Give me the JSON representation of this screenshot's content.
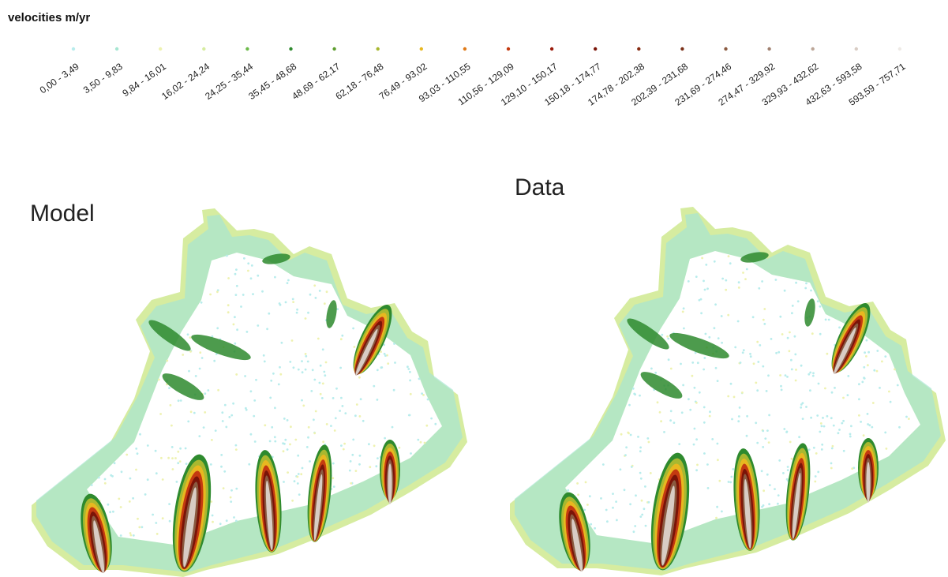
{
  "legend": {
    "title": "velocities m/yr",
    "items": [
      {
        "label": "0,00 - 3,49",
        "color": "#b8ecec"
      },
      {
        "label": "3,50 - 9,83",
        "color": "#a6e6d2"
      },
      {
        "label": "9,84 - 16,01",
        "color": "#eef2b0"
      },
      {
        "label": "16,02 - 24,24",
        "color": "#d6eca0"
      },
      {
        "label": "24,25 - 35,44",
        "color": "#6cba4a"
      },
      {
        "label": "35,45 - 48,68",
        "color": "#2e8a2e"
      },
      {
        "label": "48,69 - 62,17",
        "color": "#5e9e30"
      },
      {
        "label": "62,18 - 76,48",
        "color": "#a8b830"
      },
      {
        "label": "76,49 - 93,02",
        "color": "#e8b820"
      },
      {
        "label": "93,03 - 110,55",
        "color": "#e07a18"
      },
      {
        "label": "110,56 - 129,09",
        "color": "#c43a10"
      },
      {
        "label": "129,10 - 150,17",
        "color": "#9a1a0a"
      },
      {
        "label": "150,18 - 174,77",
        "color": "#7a1408"
      },
      {
        "label": "174,78 - 202,38",
        "color": "#862a10"
      },
      {
        "label": "202,39 - 231,68",
        "color": "#7a3018"
      },
      {
        "label": "231,69 - 274,46",
        "color": "#8a5a40"
      },
      {
        "label": "274,47 - 329,92",
        "color": "#a08070"
      },
      {
        "label": "329,93 - 432,62",
        "color": "#bca698"
      },
      {
        "label": "432,63 - 593,58",
        "color": "#d8ccc4"
      },
      {
        "label": "593,59 - 757,71",
        "color": "#eeeae6"
      }
    ]
  },
  "panels": [
    {
      "title": "Model"
    },
    {
      "title": "Data"
    }
  ]
}
